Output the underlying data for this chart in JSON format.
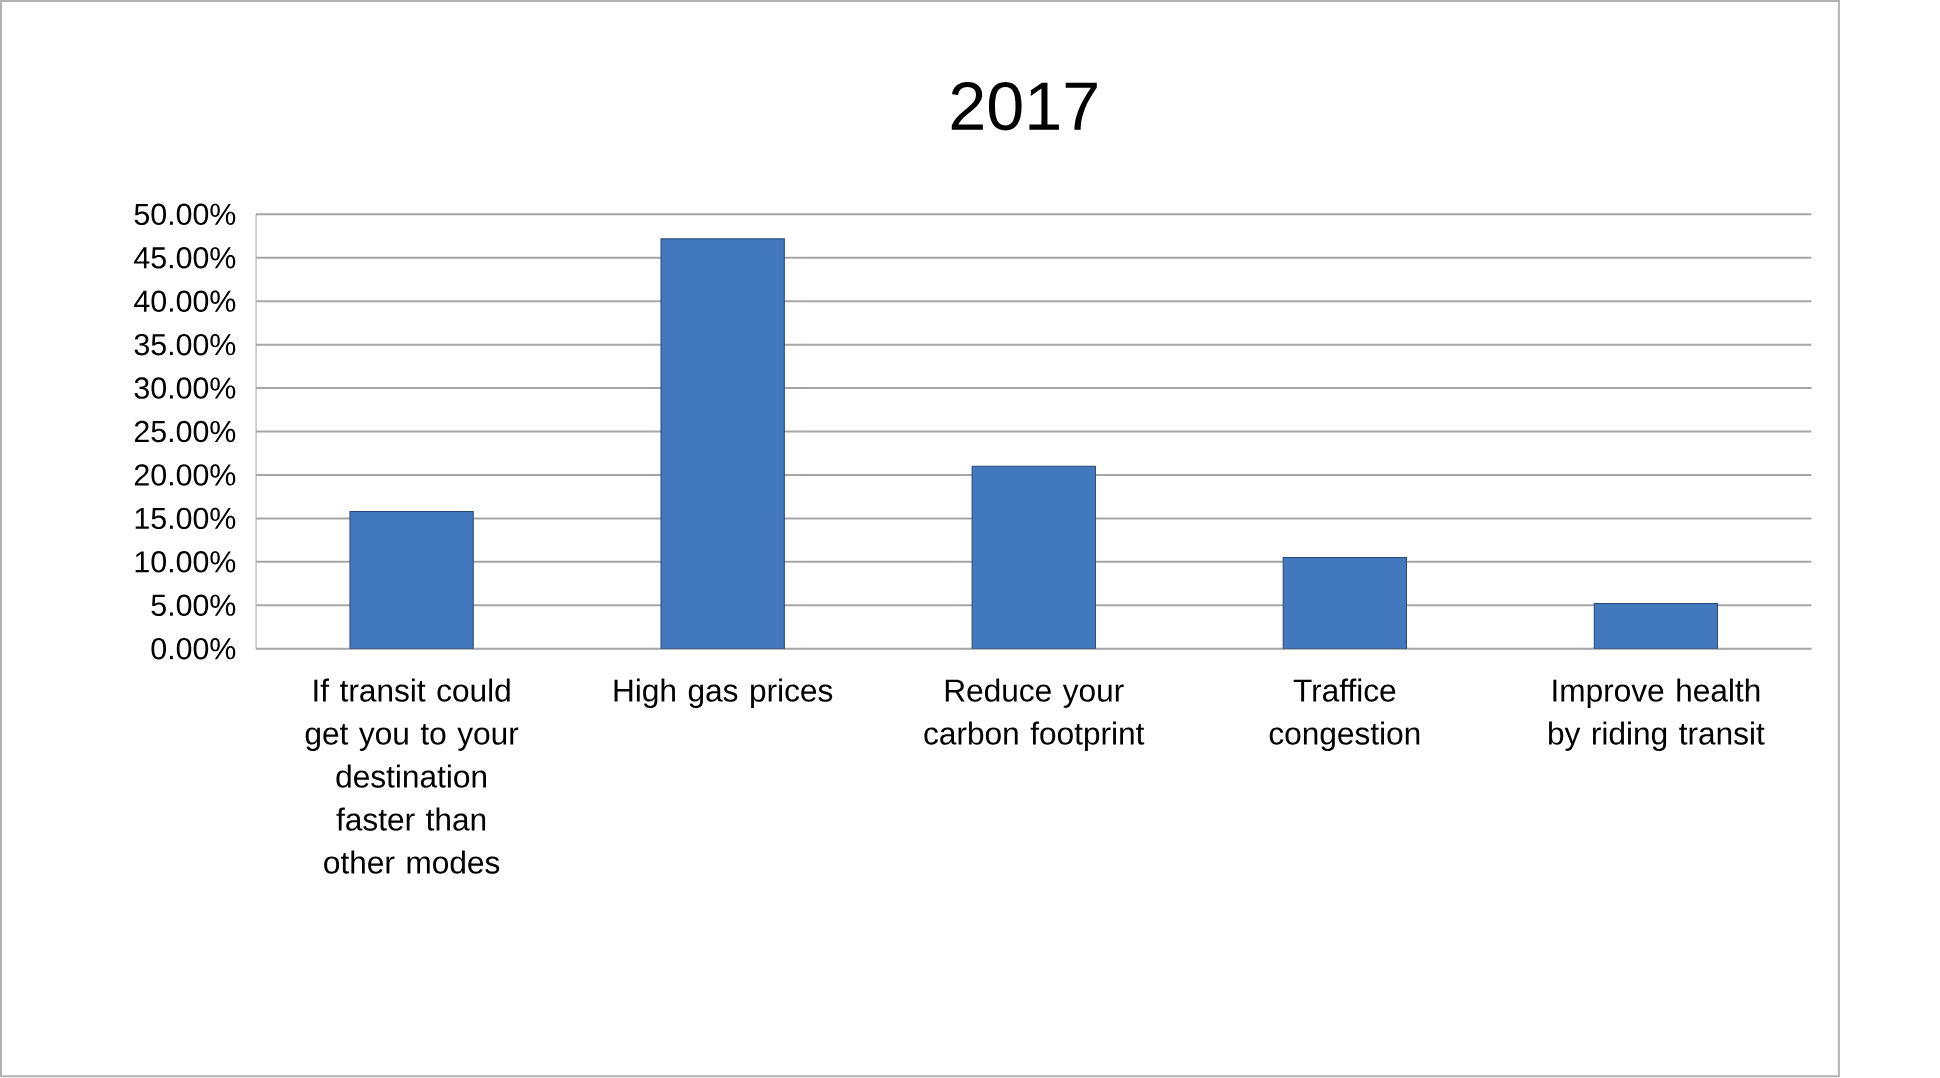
{
  "chart_data": {
    "type": "bar",
    "title": "2017",
    "categories": [
      "If transit could get you to your destination faster than other modes",
      "High gas prices",
      "Reduce your carbon footprint",
      "Traffice congestion",
      "Improve health by riding transit"
    ],
    "values": [
      15.8,
      47.2,
      21.0,
      10.5,
      5.2
    ],
    "color": "#4178be",
    "ylim": [
      0,
      50
    ],
    "yticks": [
      {
        "value": 0,
        "label": "0.00%"
      },
      {
        "value": 5,
        "label": "5.00%"
      },
      {
        "value": 10,
        "label": "10.00%"
      },
      {
        "value": 15,
        "label": "15.00%"
      },
      {
        "value": 20,
        "label": "20.00%"
      },
      {
        "value": 25,
        "label": "25.00%"
      },
      {
        "value": 30,
        "label": "30.00%"
      },
      {
        "value": 35,
        "label": "35.00%"
      },
      {
        "value": 40,
        "label": "40.00%"
      },
      {
        "value": 45,
        "label": "45.00%"
      },
      {
        "value": 50,
        "label": "50.00%"
      }
    ],
    "grid": "y"
  }
}
